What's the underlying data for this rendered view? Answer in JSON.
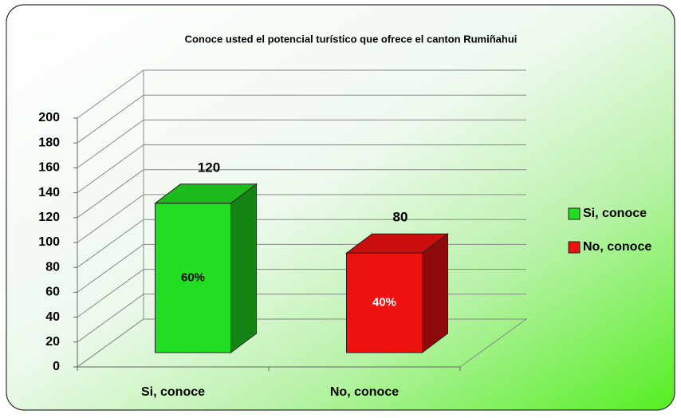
{
  "chart_data": {
    "type": "bar3d",
    "title": "Conoce usted el potencial turístico que ofrece el canton Rumiñahui",
    "categories": [
      "Si, conoce",
      "No, conoce"
    ],
    "values": [
      120,
      80
    ],
    "percentage_labels": [
      "60%",
      "40%"
    ],
    "colors": [
      "#22dd22",
      "#ee1111"
    ],
    "ylim": [
      0,
      200
    ],
    "yticks": [
      0,
      20,
      40,
      60,
      80,
      100,
      120,
      140,
      160,
      180,
      200
    ],
    "grid": true,
    "legend": "right"
  }
}
